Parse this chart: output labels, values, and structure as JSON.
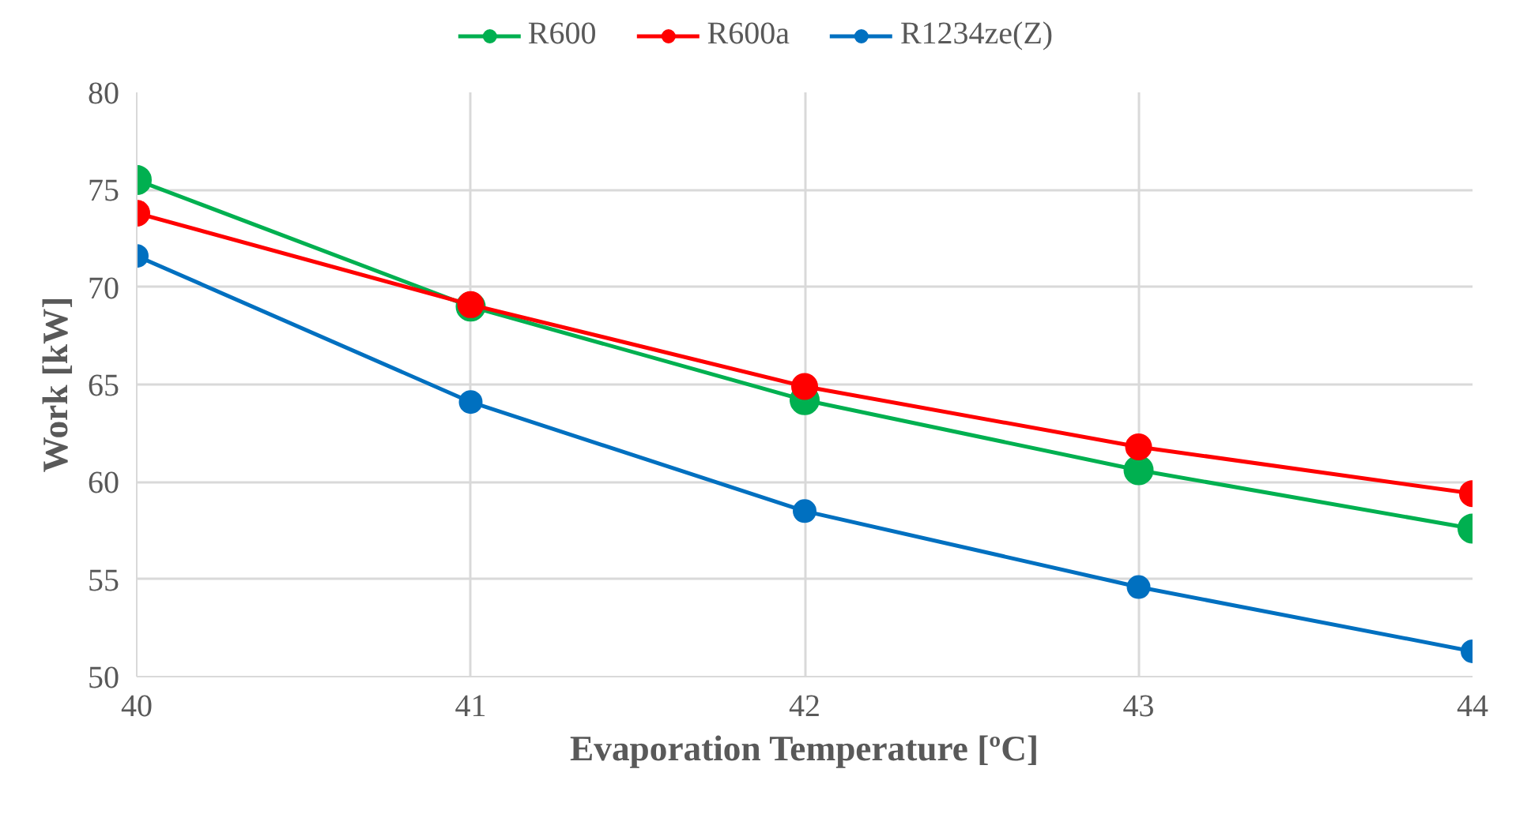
{
  "chart_data": {
    "type": "line",
    "xlabel": "Evaporation Temperature [ºC]",
    "ylabel": "Work [kW]",
    "x": [
      40,
      41,
      42,
      43,
      44
    ],
    "series": [
      {
        "name": "R600",
        "color": "#00b050",
        "values": [
          75.5,
          69.0,
          64.2,
          60.6,
          57.6
        ]
      },
      {
        "name": "R600a",
        "color": "#ff0000",
        "values": [
          73.8,
          69.1,
          64.9,
          61.8,
          59.4
        ]
      },
      {
        "name": "R1234ze(Z)",
        "color": "#0070c0",
        "values": [
          71.6,
          64.1,
          58.5,
          54.6,
          51.3
        ]
      }
    ],
    "xlim": [
      40,
      44
    ],
    "xticks": [
      40,
      41,
      42,
      43,
      44
    ],
    "ylim": [
      50,
      80
    ],
    "yticks": [
      50,
      55,
      60,
      65,
      70,
      75,
      80
    ],
    "grid": true,
    "legend": "top",
    "marker": "circle",
    "line_style": "solid"
  }
}
